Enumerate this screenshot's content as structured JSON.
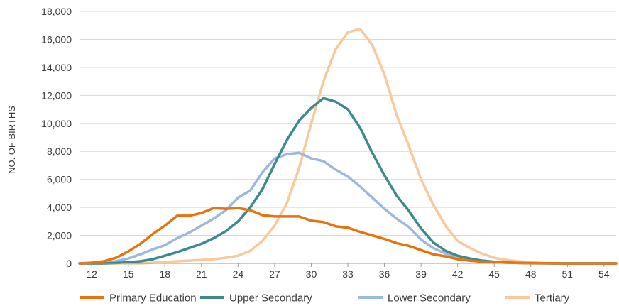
{
  "chart_data": {
    "type": "line",
    "title": "",
    "xlabel": "",
    "ylabel": "NO. OF BIRTHS",
    "x": [
      11,
      12,
      13,
      14,
      15,
      16,
      17,
      18,
      19,
      20,
      21,
      22,
      23,
      24,
      25,
      26,
      27,
      28,
      29,
      30,
      31,
      32,
      33,
      34,
      35,
      36,
      37,
      38,
      39,
      40,
      41,
      42,
      43,
      44,
      45,
      46,
      47,
      48,
      49,
      50,
      51,
      52,
      53,
      54,
      55
    ],
    "xticks": [
      12,
      15,
      18,
      21,
      24,
      27,
      30,
      33,
      36,
      39,
      42,
      45,
      48,
      51,
      54
    ],
    "xtick_labels": [
      "12",
      "15",
      "18",
      "21",
      "24",
      "27",
      "30",
      "33",
      "36",
      "39",
      "42",
      "45",
      "48",
      "51",
      "54"
    ],
    "xlim": [
      11,
      55
    ],
    "ylim": [
      0,
      18000
    ],
    "yticks": [
      0,
      2000,
      4000,
      6000,
      8000,
      10000,
      12000,
      14000,
      16000,
      18000
    ],
    "ytick_labels": [
      "0",
      "2,000",
      "4,000",
      "6,000",
      "8,000",
      "10,000",
      "12,000",
      "14,000",
      "16,000",
      "18,000"
    ],
    "grid": "horizontal",
    "legend_position": "bottom",
    "series": [
      {
        "name": "Primary Education",
        "color": "#e8730c",
        "values": [
          0,
          50,
          150,
          400,
          850,
          1400,
          2100,
          2700,
          3400,
          3400,
          3600,
          3950,
          3900,
          3950,
          3800,
          3450,
          3350,
          3350,
          3350,
          3050,
          2950,
          2650,
          2550,
          2250,
          2000,
          1750,
          1450,
          1250,
          950,
          650,
          500,
          300,
          200,
          120,
          80,
          50,
          30,
          20,
          10,
          5,
          0,
          0,
          0,
          0,
          0
        ]
      },
      {
        "name": "Upper Secondary",
        "color": "#3d8a8d",
        "values": [
          0,
          0,
          0,
          30,
          80,
          150,
          300,
          550,
          800,
          1100,
          1400,
          1800,
          2300,
          3000,
          4000,
          5300,
          7100,
          8800,
          10200,
          11100,
          11800,
          11550,
          11000,
          9700,
          7900,
          6300,
          4850,
          3750,
          2500,
          1500,
          900,
          550,
          350,
          200,
          120,
          60,
          30,
          15,
          5,
          0,
          0,
          0,
          0,
          0,
          0
        ]
      },
      {
        "name": "Lower Secondary",
        "color": "#9eb8dd",
        "values": [
          0,
          0,
          50,
          150,
          350,
          650,
          1000,
          1300,
          1800,
          2200,
          2700,
          3200,
          3800,
          4700,
          5200,
          6500,
          7500,
          7800,
          7900,
          7500,
          7300,
          6700,
          6200,
          5500,
          4700,
          3900,
          3200,
          2600,
          1700,
          1100,
          700,
          450,
          300,
          200,
          100,
          50,
          30,
          15,
          5,
          0,
          0,
          0,
          0,
          0,
          0
        ]
      },
      {
        "name": "Tertiary",
        "color": "#f8c99a",
        "values": [
          0,
          0,
          0,
          0,
          0,
          0,
          50,
          100,
          150,
          200,
          250,
          300,
          400,
          550,
          900,
          1600,
          2700,
          4300,
          6800,
          10000,
          13000,
          15300,
          16500,
          16750,
          15600,
          13500,
          10600,
          8400,
          6000,
          4200,
          2700,
          1600,
          1100,
          700,
          400,
          250,
          150,
          80,
          30,
          10,
          0,
          0,
          0,
          0,
          0
        ]
      }
    ]
  }
}
